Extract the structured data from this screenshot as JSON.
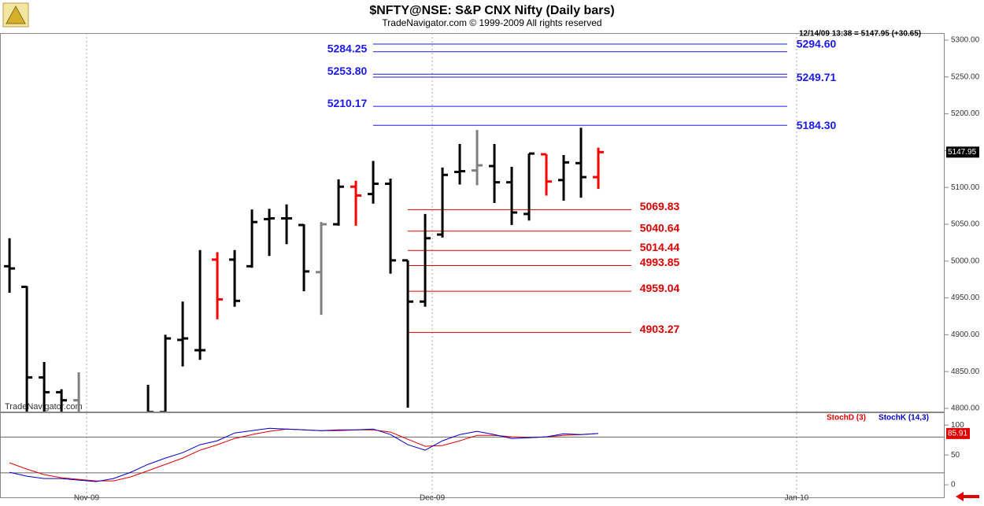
{
  "chart_data": [
    {
      "type": "ohlc",
      "title": "$NFTY@NSE:  S&P CNX Nifty  (Daily bars)",
      "subtitle": "TradeNavigator.com © 1999-2009 All rights reserved",
      "info": "12/14/09 13:38 = 5147.95 (+30.65)",
      "watermark": "TradeNavigator.com",
      "xlim": [
        -0.55,
        54
      ],
      "xticks": [
        {
          "value": 4.45,
          "label": "Nov-09"
        },
        {
          "value": 24.41,
          "label": "Dec-09"
        },
        {
          "value": 45.45,
          "label": "Jan-10"
        }
      ],
      "ylim": [
        4795.7,
        5309.6
      ],
      "yticks": [
        {
          "value": 4800,
          "label": "4800.00"
        },
        {
          "value": 4850,
          "label": "4850.00"
        },
        {
          "value": 4900,
          "label": "4900.00"
        },
        {
          "value": 4950,
          "label": "4950.00"
        },
        {
          "value": 5000,
          "label": "5000.00"
        },
        {
          "value": 5050,
          "label": "5050.00"
        },
        {
          "value": 5100,
          "label": "5100.00"
        },
        {
          "value": 5150,
          "label": "5150.00"
        },
        {
          "value": 5200,
          "label": "5200.00"
        },
        {
          "value": 5250,
          "label": "5250.00"
        },
        {
          "value": 5300,
          "label": "5300.00"
        }
      ],
      "open": [
        4993,
        4965,
        4842,
        4822,
        4811,
        null,
        null,
        null,
        4790,
        4795,
        4893,
        4879,
        5002,
        5002,
        4993,
        5057,
        5058,
        5049,
        4985,
        5050,
        5101,
        5091,
        5105,
        5001,
        4945,
        5036,
        5121,
        5123,
        5129,
        5107,
        5064,
        5145,
        5110,
        5133,
        5114
      ],
      "high": [
        5031,
        4966,
        4863,
        4826,
        4849,
        null,
        null,
        null,
        4832,
        4900,
        4945,
        5015,
        5012,
        5015,
        5070,
        5071,
        5077,
        5050,
        5053,
        5111,
        5109,
        5136,
        5112,
        5001,
        5064,
        5127,
        5159,
        5178,
        5159,
        5128,
        5146,
        5145,
        5144,
        5181,
        5154
      ],
      "low": [
        4957,
        4790,
        4790,
        4790,
        4790,
        null,
        null,
        null,
        4780,
        4780,
        4857,
        4866,
        4921,
        4938,
        4991,
        5007,
        5023,
        4959,
        4927,
        5048,
        5048,
        5078,
        4983,
        4801,
        4938,
        5032,
        5104,
        5103,
        5079,
        5049,
        5055,
        5089,
        5082,
        5086,
        5098
      ],
      "close": [
        4990,
        4842,
        4822,
        4811,
        4790,
        null,
        null,
        null,
        4795,
        4895,
        4895,
        4879,
        4948,
        4946,
        5053,
        5058,
        5058,
        4986,
        5050,
        5101,
        5089,
        5105,
        5001,
        4945,
        5031,
        5117,
        5122,
        5130,
        5107,
        5066,
        5146,
        5108,
        5134,
        5114,
        5147.95
      ],
      "bar_colors": [
        "#000000",
        "#000000",
        "#000000",
        "#000000",
        "#808080",
        "#000000",
        "#000000",
        "#000000",
        "#000000",
        "#000000",
        "#000000",
        "#000000",
        "#ff0000",
        "#000000",
        "#000000",
        "#000000",
        "#000000",
        "#000000",
        "#808080",
        "#000000",
        "#ff0000",
        "#000000",
        "#000000",
        "#000000",
        "#000000",
        "#000000",
        "#000000",
        "#808080",
        "#000000",
        "#000000",
        "#000000",
        "#ff0000",
        "#000000",
        "#000000",
        "#ff0000"
      ],
      "last_value": 5147.95,
      "levels": [
        {
          "value": 5294.6,
          "label": "5294.60",
          "color": "#1a1aee",
          "side": "right"
        },
        {
          "value": 5284.25,
          "label": "5284.25",
          "color": "#1a1aee",
          "side": "left"
        },
        {
          "value": 5253.8,
          "label": "5253.80",
          "color": "#1a1aee",
          "side": "left"
        },
        {
          "value": 5249.71,
          "label": "5249.71",
          "color": "#1a1aee",
          "side": "right"
        },
        {
          "value": 5210.17,
          "label": "5210.17",
          "color": "#1a1aee",
          "side": "left"
        },
        {
          "value": 5184.3,
          "label": "5184.30",
          "color": "#1a1aee",
          "side": "right"
        },
        {
          "value": 5069.83,
          "label": "5069.83",
          "color": "#e00000",
          "side": "right"
        },
        {
          "value": 5040.64,
          "label": "5040.64",
          "color": "#e00000",
          "side": "right"
        },
        {
          "value": 5014.44,
          "label": "5014.44",
          "color": "#e00000",
          "side": "right"
        },
        {
          "value": 4993.85,
          "label": "4993.85",
          "color": "#e00000",
          "side": "right"
        },
        {
          "value": 4959.04,
          "label": "4959.04",
          "color": "#e00000",
          "side": "right"
        },
        {
          "value": 4903.27,
          "label": "4903.27",
          "color": "#e00000",
          "side": "right"
        }
      ]
    },
    {
      "type": "line",
      "xlim": [
        -0.55,
        54
      ],
      "ylim": [
        -21,
        120
      ],
      "yticks": [
        0,
        50,
        100
      ],
      "hlines": [
        20,
        80
      ],
      "series": [
        {
          "name": "StochD (3)",
          "color": "#e00000",
          "values": [
            36.8,
            26.3,
            17.1,
            11.8,
            9.2,
            6.6,
            6.6,
            13.2,
            23.7,
            34.2,
            44.7,
            57.9,
            67.1,
            77.6,
            84.2,
            89.5,
            93.4,
            92.1,
            90.8,
            90.8,
            92.1,
            92.1,
            88.2,
            76.3,
            64.5,
            65.8,
            73.7,
            82.9,
            82.9,
            80.3,
            78.9,
            80.3,
            82.9,
            84.2,
            85.91
          ]
        },
        {
          "name": "StochK (14,3)",
          "color": "#0000cc",
          "values": [
            21.1,
            14.5,
            10.5,
            10.5,
            7.9,
            5.3,
            10.5,
            21.1,
            34.2,
            44.7,
            53.9,
            67.1,
            73.7,
            86.8,
            90.8,
            94.7,
            93.4,
            92.1,
            90.8,
            92.1,
            92.1,
            93.4,
            84.2,
            67.1,
            57.9,
            73.7,
            84.2,
            89.5,
            84.2,
            77.6,
            78.9,
            80.3,
            85.5,
            84.2,
            85.9
          ]
        }
      ],
      "last_value": 85.91
    }
  ]
}
